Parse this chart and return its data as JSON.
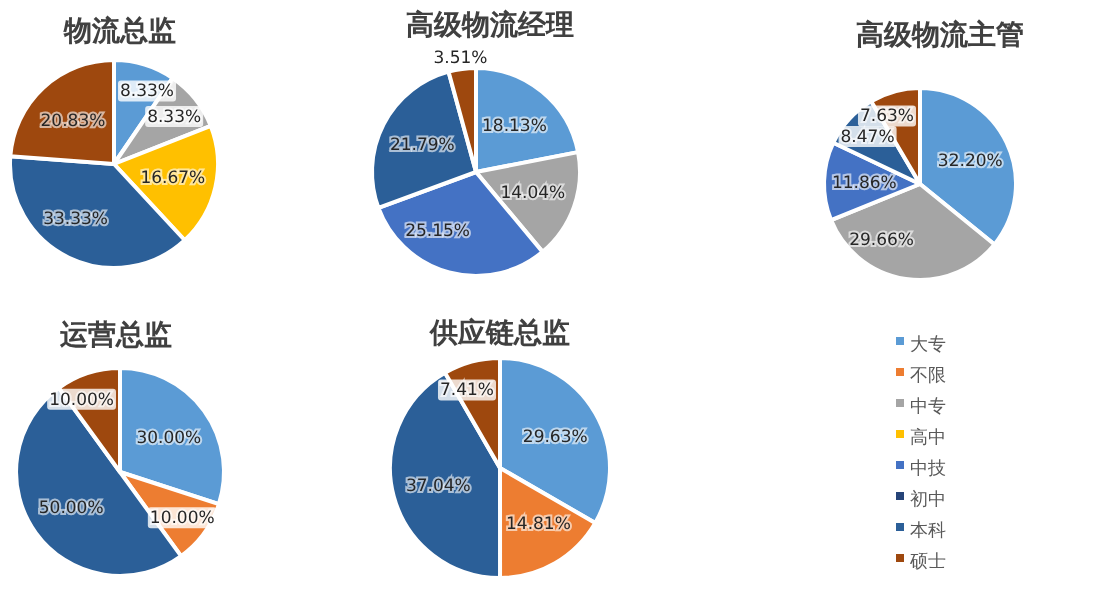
{
  "chart_data": [
    {
      "type": "pie",
      "title": "物流总监",
      "categories": [
        null,
        null,
        null,
        null,
        null
      ],
      "values": [
        8.33,
        8.33,
        16.67,
        33.33,
        20.83
      ],
      "value_labels": [
        "8.33%",
        "8.33%",
        "16.67%",
        "33.33%",
        "20.83%"
      ],
      "colors": [
        "#5b9bd5",
        "#a5a5a5",
        "#ffc000",
        "#2b5f98",
        "#9e480e"
      ],
      "legend": false
    },
    {
      "type": "pie",
      "title": "高级物流经理",
      "categories": [
        null,
        null,
        null,
        null,
        null
      ],
      "values": [
        18.13,
        14.04,
        25.15,
        21.79,
        3.51
      ],
      "value_labels": [
        "18.13%",
        "14.04%",
        "25.15%",
        "21.79%",
        "3.51%"
      ],
      "colors": [
        "#5b9bd5",
        "#a5a5a5",
        "#4472c4",
        "#2b5f98",
        "#9e480e"
      ],
      "legend": false
    },
    {
      "type": "pie",
      "title": "高级物流主管",
      "categories": [
        null,
        null,
        null,
        null,
        null
      ],
      "values": [
        32.2,
        29.66,
        11.86,
        8.47,
        7.63
      ],
      "value_labels": [
        "32.20%",
        "29.66%",
        "11.86%",
        "8.47%",
        "7.63%"
      ],
      "colors": [
        "#5b9bd5",
        "#a5a5a5",
        "#4472c4",
        "#2b5f98",
        "#9e480e"
      ],
      "legend": false
    },
    {
      "type": "pie",
      "title": "运营总监",
      "categories": [
        null,
        null,
        null,
        null
      ],
      "values": [
        30.0,
        10.0,
        50.0,
        10.0
      ],
      "value_labels": [
        "30.00%",
        "10.00%",
        "50.00%",
        "10.00%"
      ],
      "colors": [
        "#5b9bd5",
        "#ed7d31",
        "#2b5f98",
        "#9e480e"
      ],
      "legend": false
    },
    {
      "type": "pie",
      "title": "供应链总监",
      "categories": [
        "大专",
        "不限",
        "中专",
        "高中",
        "中技",
        "初中",
        "本科",
        "硕士"
      ],
      "values": [
        29.63,
        14.81,
        null,
        null,
        null,
        null,
        37.04,
        7.41
      ],
      "value_labels": [
        "29.63%",
        "14.81%",
        null,
        null,
        null,
        null,
        "37.04%",
        "7.41%"
      ],
      "colors": [
        "#5b9bd5",
        "#ed7d31",
        "#a5a5a5",
        "#ffc000",
        "#4472c4",
        "#264478",
        "#2b5f98",
        "#9e480e"
      ],
      "legend": "right"
    }
  ]
}
